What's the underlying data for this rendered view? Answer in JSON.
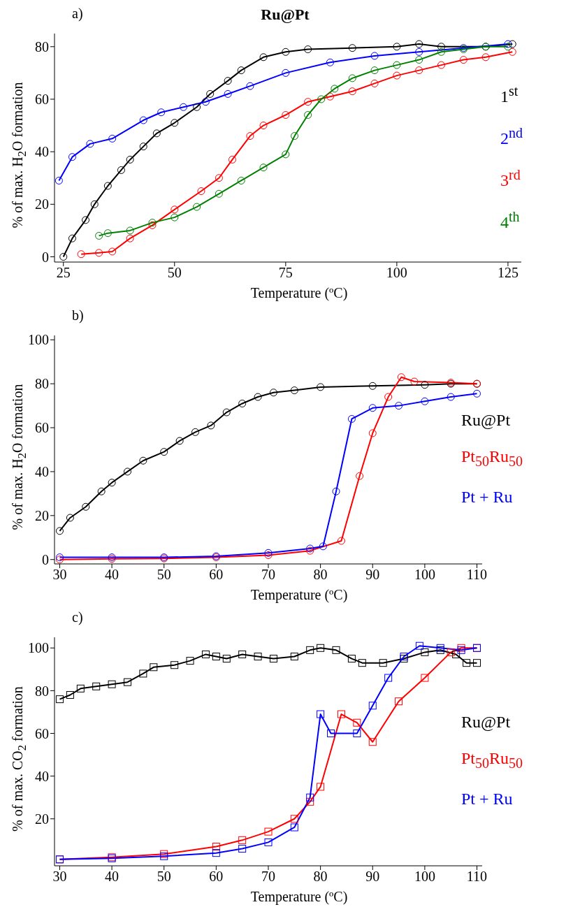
{
  "chart_data": [
    {
      "type": "line",
      "title": "Ru@Pt",
      "xlabel": "Temperature (ºC)",
      "ylabel": "% of max. H$_{2}$O formation",
      "annotations": [
        "a)"
      ],
      "xlim": [
        23,
        128
      ],
      "xticks": [
        25,
        50,
        75,
        100,
        125
      ],
      "ylim": [
        -2,
        85
      ],
      "yticks": [
        0,
        20,
        40,
        60,
        80
      ],
      "legend": "right",
      "marker": "circle",
      "line_style": "solid",
      "series": [
        {
          "name": "1$^{st}$",
          "color": "#000000",
          "x": [
            25,
            27,
            30,
            32,
            35,
            38,
            40,
            43,
            46,
            50,
            55,
            58,
            62,
            65,
            70,
            75,
            80,
            90,
            100,
            105,
            110,
            120,
            126
          ],
          "values": [
            0,
            7,
            14,
            20,
            27,
            33,
            37,
            42,
            47,
            51,
            57,
            62,
            67,
            71,
            76,
            78,
            79,
            79.5,
            80,
            81,
            80,
            80,
            81
          ]
        },
        {
          "name": "2$^{nd}$",
          "color": "#0000ff",
          "x": [
            24,
            27,
            31,
            36,
            43,
            47,
            52,
            57,
            62,
            67,
            75,
            85,
            95,
            105,
            115,
            125
          ],
          "values": [
            29,
            38,
            43,
            45,
            52,
            55,
            57,
            59,
            62,
            65,
            70,
            74,
            76.5,
            78,
            79.5,
            81
          ]
        },
        {
          "name": "3$^{rd}$",
          "color": "#ff0000",
          "x": [
            29,
            33,
            36,
            40,
            45,
            50,
            56,
            60,
            63,
            67,
            70,
            75,
            80,
            85,
            90,
            95,
            100,
            105,
            110,
            115,
            120,
            126
          ],
          "values": [
            1,
            1.5,
            2,
            7,
            12,
            18,
            25,
            30,
            37,
            46,
            50,
            54,
            59,
            61,
            63,
            66,
            69,
            71,
            73,
            75,
            76,
            78
          ]
        },
        {
          "name": "4$^{th}$",
          "color": "#008000",
          "x": [
            33,
            35,
            40,
            45,
            50,
            55,
            60,
            65,
            70,
            75,
            77,
            80,
            83,
            86,
            90,
            95,
            100,
            105,
            110,
            115,
            120,
            125
          ],
          "values": [
            8,
            9,
            10,
            13,
            15,
            19,
            24,
            29,
            34,
            39,
            46,
            54,
            60,
            64,
            68,
            71,
            73,
            75,
            78,
            79,
            80,
            80
          ]
        }
      ]
    },
    {
      "type": "line",
      "xlabel": "Temperature (ºC)",
      "ylabel": "% of max. H$_{2}$O formation",
      "annotations": [
        "b)"
      ],
      "xlim": [
        29,
        111
      ],
      "xticks": [
        30,
        40,
        50,
        60,
        70,
        80,
        90,
        100,
        110
      ],
      "ylim": [
        -2,
        102
      ],
      "yticks": [
        0,
        20,
        40,
        60,
        80,
        100
      ],
      "legend": "right",
      "marker": "circle",
      "line_style": "solid",
      "series": [
        {
          "name": "Ru@Pt",
          "color": "#000000",
          "x": [
            30,
            32,
            35,
            38,
            40,
            43,
            46,
            50,
            53,
            56,
            59,
            62,
            65,
            68,
            71,
            75,
            80,
            90,
            100,
            105,
            110
          ],
          "values": [
            13,
            19,
            24,
            31,
            35,
            40,
            45,
            49,
            54,
            58,
            61,
            67,
            71,
            74,
            76,
            77,
            78.5,
            79,
            79.5,
            80,
            80
          ]
        },
        {
          "name": "Pt$_{50}$Ru$_{50}$",
          "color": "#ff0000",
          "x": [
            30,
            40,
            50,
            60,
            70,
            78,
            84,
            87.5,
            90,
            93,
            95.5,
            98,
            105,
            110
          ],
          "values": [
            0,
            0.3,
            0.5,
            1,
            2,
            4,
            8.5,
            38,
            57.5,
            74,
            83,
            81,
            80.5,
            80
          ]
        },
        {
          "name": "Pt + Ru",
          "color": "#0000ff",
          "x": [
            30,
            40,
            50,
            60,
            70,
            78,
            80.5,
            83,
            86,
            90,
            95,
            100,
            105,
            110
          ],
          "values": [
            1,
            1,
            1,
            1.5,
            3,
            5,
            6,
            31,
            64,
            69,
            70,
            72,
            74,
            75.5
          ]
        }
      ]
    },
    {
      "type": "line",
      "xlabel": "Temperature (ºC)",
      "ylabel": "% of max. CO$_{2}$ formation",
      "annotations": [
        "c)"
      ],
      "xlim": [
        29,
        111
      ],
      "xticks": [
        30,
        40,
        50,
        60,
        70,
        80,
        90,
        100,
        110
      ],
      "ylim": [
        -2,
        105
      ],
      "yticks": [
        20,
        40,
        60,
        80,
        100
      ],
      "legend": "right",
      "marker": "square",
      "line_style": "solid",
      "series": [
        {
          "name": "Ru@Pt",
          "color": "#000000",
          "x": [
            30,
            32,
            34,
            37,
            40,
            43,
            46,
            48,
            52,
            55,
            58,
            60,
            62,
            65,
            68,
            71,
            75,
            78,
            80,
            83,
            86,
            88,
            92,
            96,
            100,
            103,
            106,
            108,
            110
          ],
          "values": [
            76,
            78,
            81,
            82,
            83,
            84,
            88,
            91,
            92,
            94,
            97,
            96,
            95,
            97,
            96,
            95,
            96,
            99,
            100,
            99,
            95,
            93,
            93,
            95,
            98,
            99,
            97,
            93,
            93
          ]
        },
        {
          "name": "Pt$_{50}$Ru$_{50}$",
          "color": "#ff0000",
          "x": [
            30,
            40,
            50,
            60,
            65,
            70,
            75,
            78,
            80,
            84,
            87,
            90,
            95,
            100,
            105,
            107,
            110
          ],
          "values": [
            1,
            2,
            3.5,
            7,
            10,
            14,
            20,
            28,
            35,
            69,
            65,
            56,
            75,
            86,
            98,
            100,
            100
          ]
        },
        {
          "name": "Pt + Ru",
          "color": "#0000ff",
          "x": [
            30,
            40,
            50,
            60,
            65,
            70,
            75,
            78,
            80,
            82,
            87,
            90,
            93,
            96,
            99,
            103,
            107,
            110
          ],
          "values": [
            1,
            1.5,
            2.5,
            4,
            6,
            9,
            16,
            30,
            69,
            60,
            60,
            73,
            86,
            96,
            101,
            100,
            99,
            100
          ]
        }
      ]
    }
  ]
}
